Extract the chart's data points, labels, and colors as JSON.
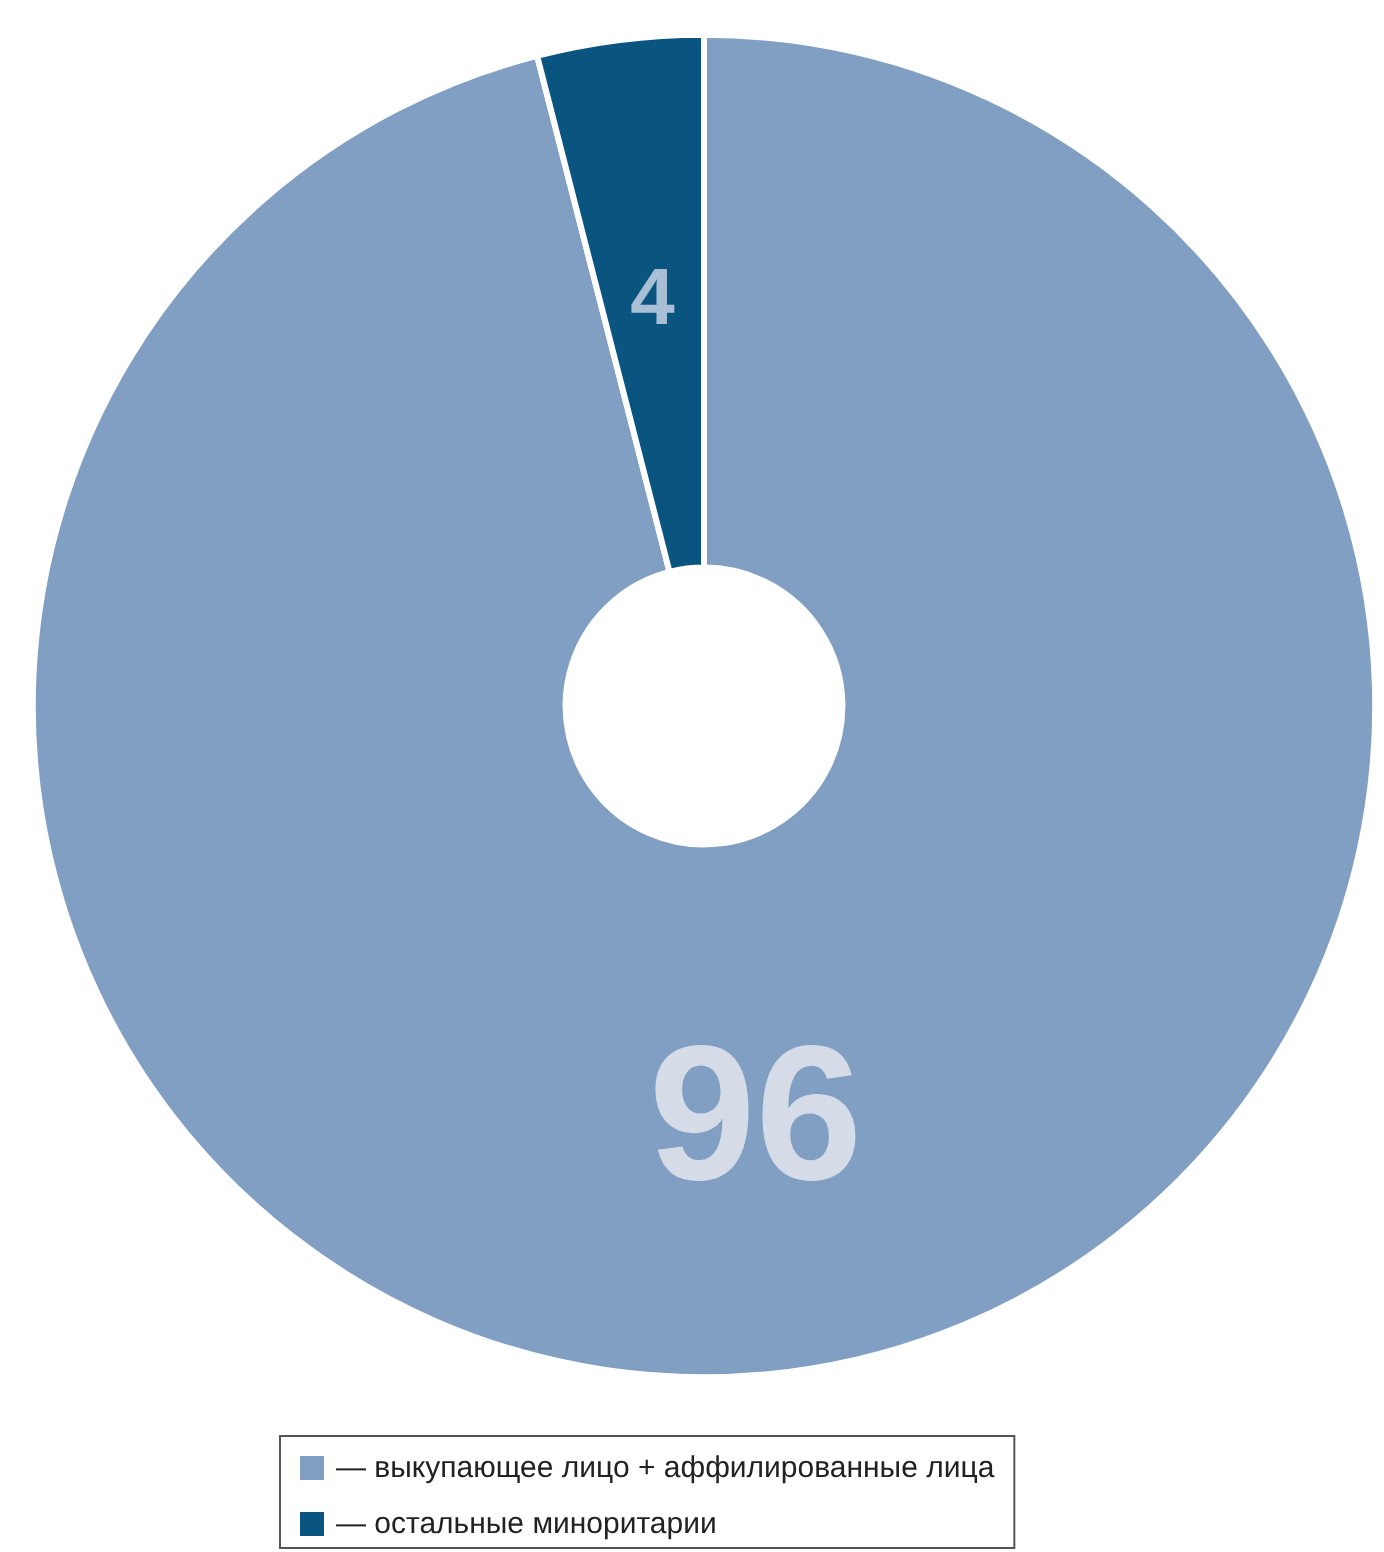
{
  "chart_data": {
    "type": "donut",
    "categories": [
      "— выкупающее лицо + аффилированные лица",
      "— остальные миноритарии"
    ],
    "values": [
      96,
      4
    ],
    "colors": [
      "#809fc2",
      "#0a5580"
    ],
    "data_labels": true,
    "legend": "bottom"
  }
}
